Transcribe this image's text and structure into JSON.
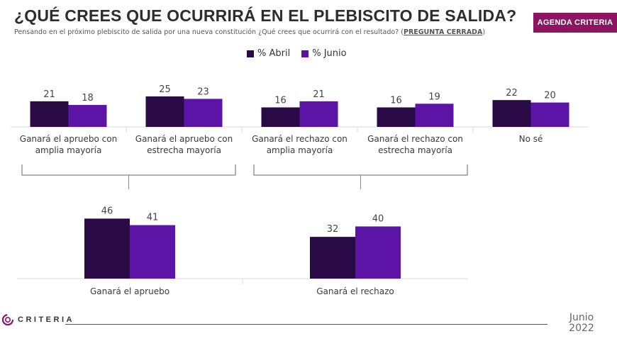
{
  "header": {
    "title": "¿QUÉ CREES QUE OCURRIRÁ EN EL PLEBISCITO DE SALIDA?",
    "subtitle": "Pensando en el próximo plebiscito de salida por una nueva constitución ¿Qué crees que ocurrirá con el resultado? (",
    "subtitle_tag": "PREGUNTA CERRADA",
    "subtitle_end": ")",
    "badge": "AGENDA CRITERIA"
  },
  "colors": {
    "abril": "#2a0a45",
    "junio": "#5b14a6",
    "badge": "#8c1460"
  },
  "chart_data": [
    {
      "type": "bar",
      "categories": [
        "Ganará el apruebo con amplia mayoría",
        "Ganará el apruebo con estrecha mayoría",
        "Ganará el rechazo con amplia mayoría",
        "Ganará el rechazo con estrecha mayoría",
        "No sé"
      ],
      "category_lines": [
        [
          "Ganará el apruebo con",
          "amplia mayoría"
        ],
        [
          "Ganará el apruebo con",
          "estrecha mayoría"
        ],
        [
          "Ganará el rechazo con",
          "amplia mayoría"
        ],
        [
          "Ganará el rechazo con",
          "estrecha mayoría"
        ],
        [
          "No sé"
        ]
      ],
      "series": [
        {
          "name": "% Abril",
          "values": [
            21,
            25,
            16,
            16,
            22
          ]
        },
        {
          "name": "% Junio",
          "values": [
            18,
            23,
            21,
            19,
            20
          ]
        }
      ],
      "legend": "top"
    },
    {
      "type": "bar",
      "categories": [
        "Ganará el apruebo",
        "Ganará el rechazo"
      ],
      "series": [
        {
          "name": "% Abril",
          "values": [
            46,
            32
          ]
        },
        {
          "name": "% Junio",
          "values": [
            41,
            40
          ]
        }
      ]
    }
  ],
  "footer": {
    "brand": "CRITERIA",
    "date_month": "Junio",
    "date_year": "2022"
  }
}
